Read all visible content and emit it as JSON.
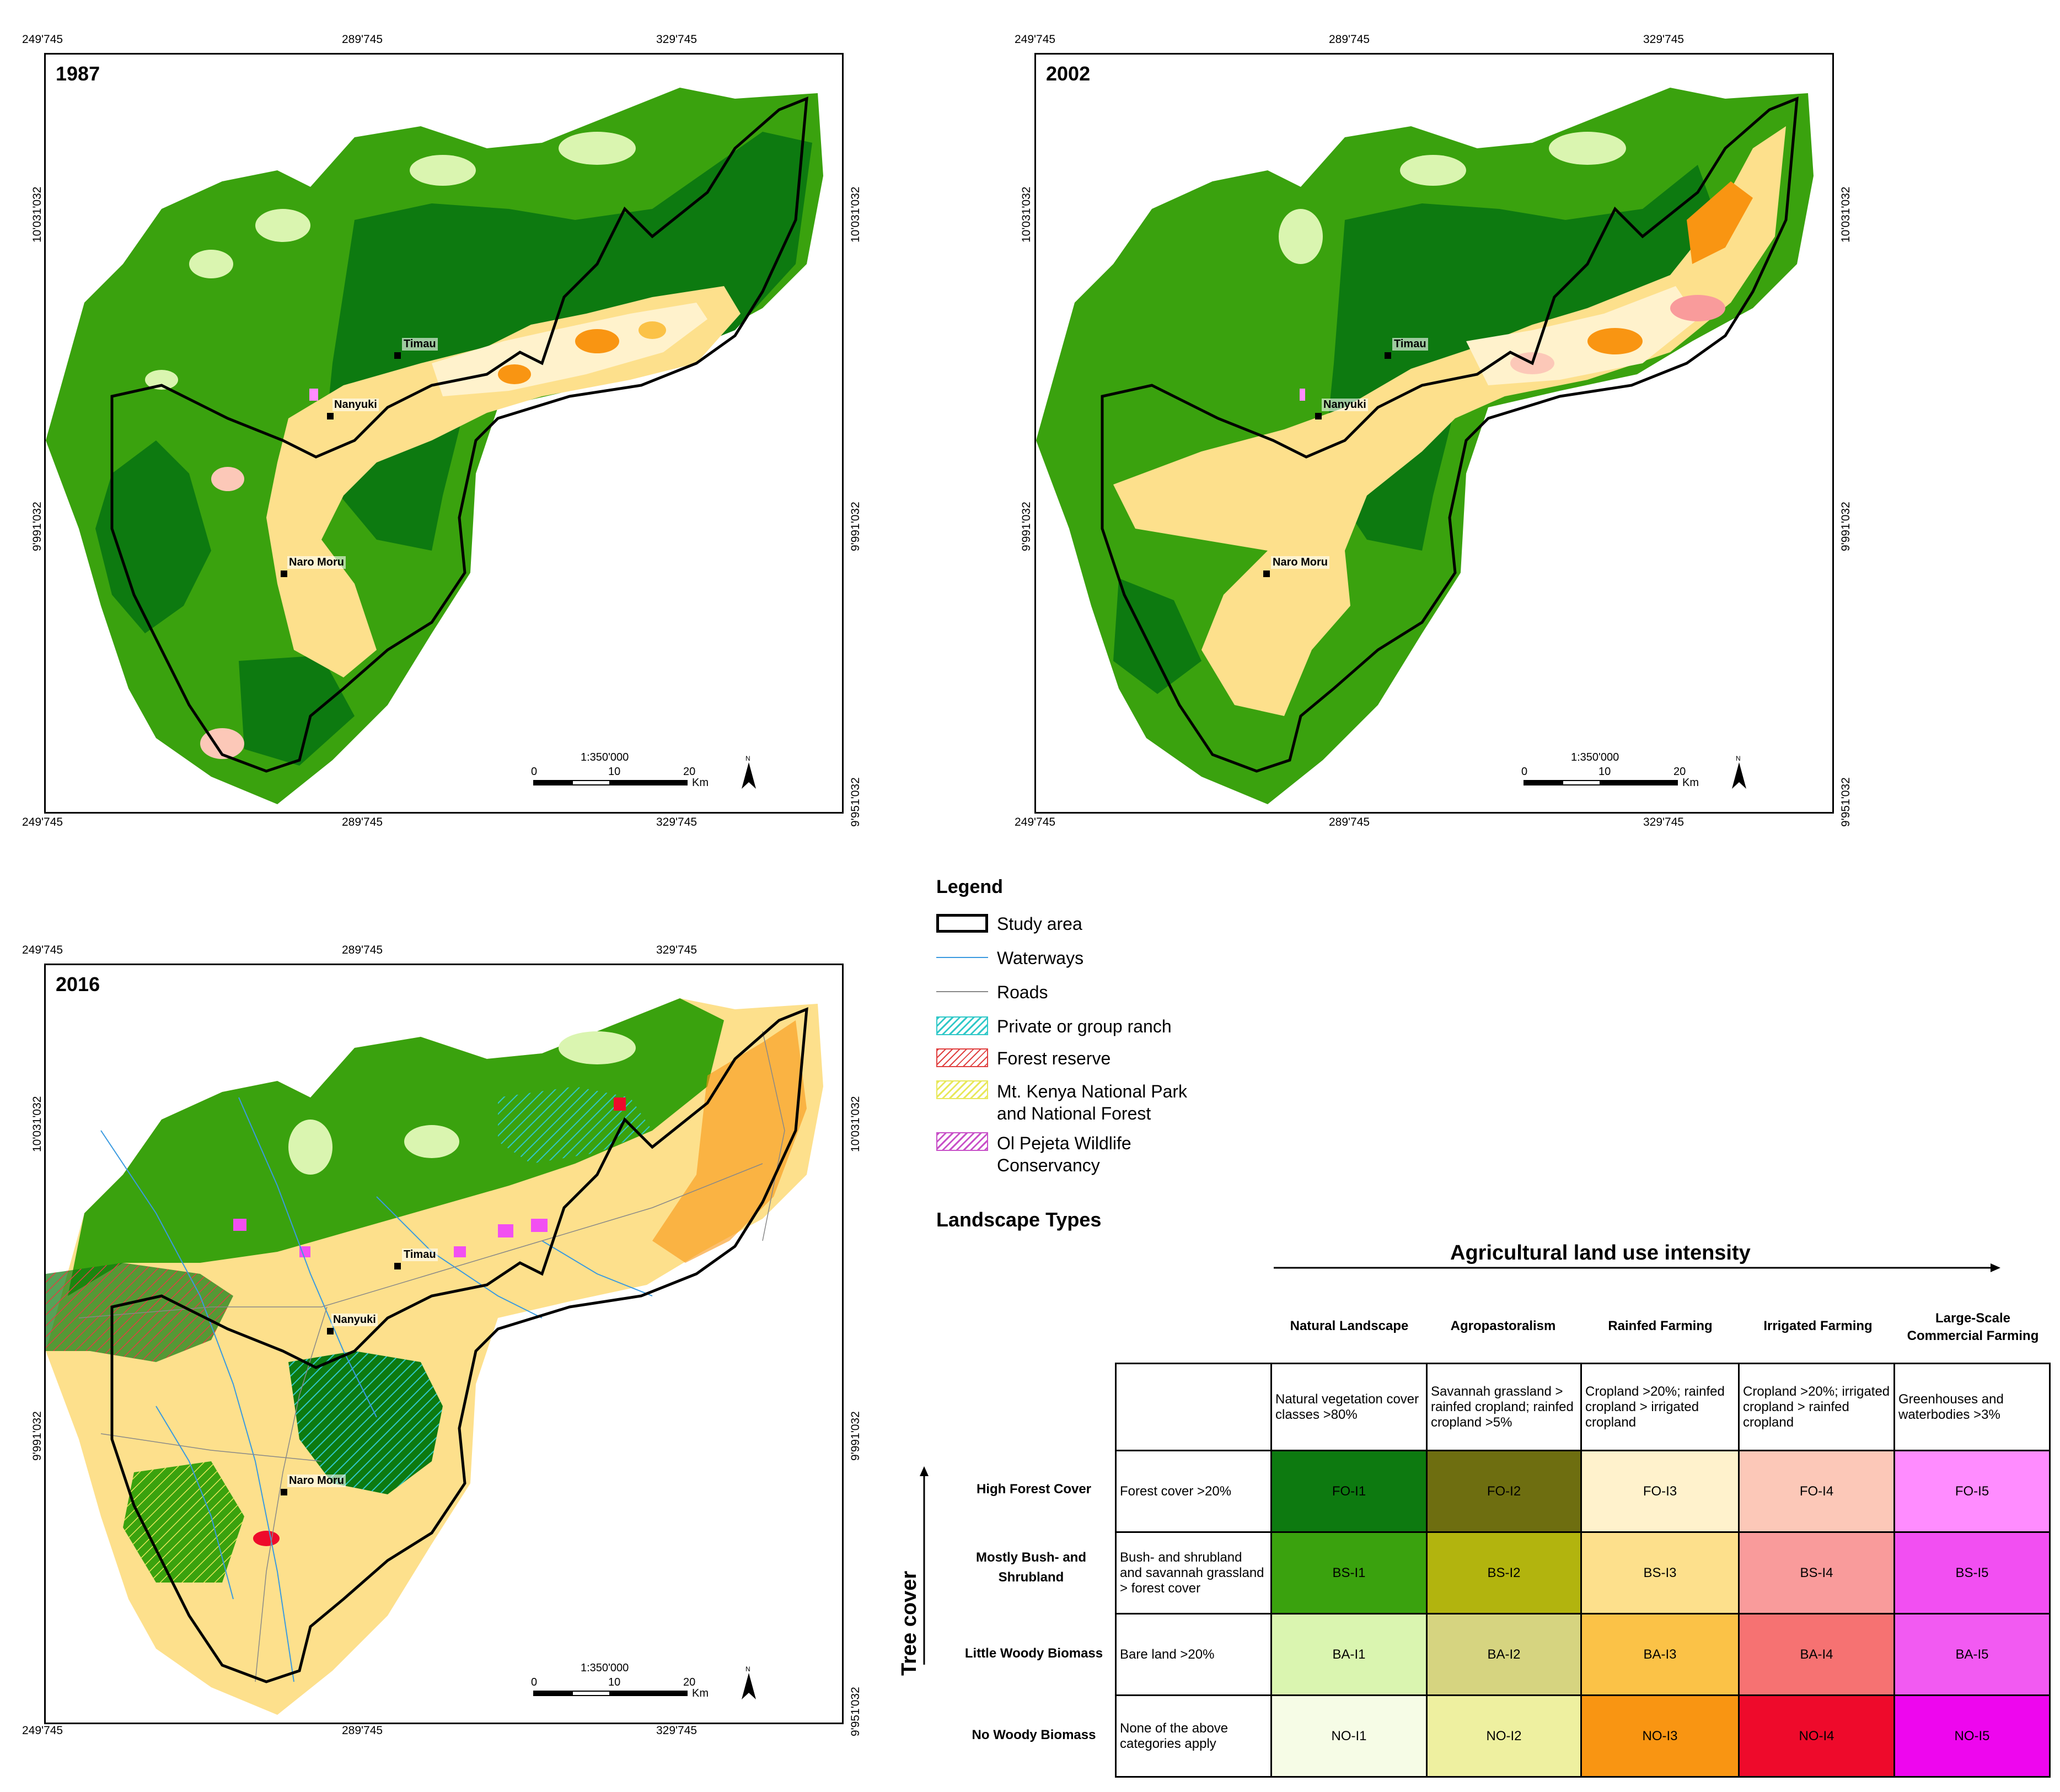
{
  "maps": [
    {
      "year": "1987",
      "top_ticks": [
        "249'745",
        "289'745",
        "329'745"
      ],
      "bottom_ticks": [
        "249'745",
        "289'745",
        "329'745"
      ],
      "left_ticks": [
        "10'031'032",
        "9'991'032"
      ],
      "right_ticks": [
        "10'031'032",
        "9'991'032",
        "9'951'032"
      ],
      "towns": [
        "Timau",
        "Nanyuki",
        "Naro Moru"
      ],
      "scale": {
        "ratio": "1:350'000",
        "ticks": [
          "0",
          "10",
          "20"
        ],
        "unit": "Km",
        "north": "N"
      }
    },
    {
      "year": "2002",
      "top_ticks": [
        "249'745",
        "289'745",
        "329'745"
      ],
      "bottom_ticks": [
        "249'745",
        "289'745",
        "329'745"
      ],
      "left_ticks": [
        "10'031'032",
        "9'991'032"
      ],
      "right_ticks": [
        "10'031'032",
        "9'991'032",
        "9'951'032"
      ],
      "towns": [
        "Timau",
        "Nanyuki",
        "Naro Moru"
      ],
      "scale": {
        "ratio": "1:350'000",
        "ticks": [
          "0",
          "10",
          "20"
        ],
        "unit": "Km",
        "north": "N"
      }
    },
    {
      "year": "2016",
      "top_ticks": [
        "249'745",
        "289'745",
        "329'745"
      ],
      "bottom_ticks": [
        "249'745",
        "289'745",
        "329'745"
      ],
      "left_ticks": [
        "10'031'032",
        "9'991'032"
      ],
      "right_ticks": [
        "10'031'032",
        "9'991'032",
        "9'951'032"
      ],
      "towns": [
        "Timau",
        "Nanyuki",
        "Naro Moru"
      ],
      "scale": {
        "ratio": "1:350'000",
        "ticks": [
          "0",
          "10",
          "20"
        ],
        "unit": "Km",
        "north": "N"
      }
    }
  ],
  "legend": {
    "title": "Legend",
    "items": [
      {
        "label": "Study area",
        "symbol": "box-outline"
      },
      {
        "label": "Waterways",
        "symbol": "blue-line"
      },
      {
        "label": "Roads",
        "symbol": "grey-line"
      },
      {
        "label": "Private or group ranch",
        "symbol": "cyan-hatch"
      },
      {
        "label": "Forest reserve",
        "symbol": "red-hatch"
      },
      {
        "label": "Mt. Kenya National Park and National Forest",
        "symbol": "yellow-hatch"
      },
      {
        "label": "Ol Pejeta Wildlife Conservancy",
        "symbol": "magenta-hatch"
      }
    ]
  },
  "landscape": {
    "title": "Landscape Types",
    "x_axis_label": "Agricultural land use intensity",
    "y_axis_label": "Tree cover",
    "columns": [
      {
        "name": "Natural Landscape",
        "desc": "Natural vegetation cover classes >80%"
      },
      {
        "name": "Agropastoralism",
        "desc": "Savannah grassland > rainfed cropland; rainfed cropland >5%"
      },
      {
        "name": "Rainfed Farming",
        "desc": "Cropland >20%; rainfed cropland > irrigated cropland"
      },
      {
        "name": "Irrigated Farming",
        "desc": "Cropland >20%; irrigated cropland > rainfed cropland"
      },
      {
        "name": "Large-Scale Commercial Farming",
        "desc": "Greenhouses and waterbodies >3%"
      }
    ],
    "rows": [
      {
        "name": "High Forest Cover",
        "desc": "Forest cover >20%",
        "codes": [
          "FO-I1",
          "FO-I2",
          "FO-I3",
          "FO-I4",
          "FO-I5"
        ],
        "colors": [
          "#0d7a10",
          "#6e6e10",
          "#fff2cc",
          "#fcc8b8",
          "#ff8cff"
        ]
      },
      {
        "name": "Mostly Bush- and Shrubland",
        "desc": "Bush- and shrubland and savannah grassland > forest cover",
        "codes": [
          "BS-I1",
          "BS-I2",
          "BS-I3",
          "BS-I4",
          "BS-I5"
        ],
        "colors": [
          "#3aa20e",
          "#b2b40e",
          "#fde08c",
          "#f99b9b",
          "#f24ff2"
        ]
      },
      {
        "name": "Little Woody Biomass",
        "desc": "Bare land >20%",
        "codes": [
          "BA-I1",
          "BA-I2",
          "BA-I3",
          "BA-I4",
          "BA-I5"
        ],
        "colors": [
          "#daf5b0",
          "#d6d480",
          "#fbc247",
          "#f67272",
          "#f25af2"
        ]
      },
      {
        "name": "No Woody Biomass",
        "desc": "None of the above categories apply",
        "codes": [
          "NO-I1",
          "NO-I2",
          "NO-I3",
          "NO-I4",
          "NO-I5"
        ],
        "colors": [
          "#f6fce6",
          "#eef0a0",
          "#f99512",
          "#ee0a2b",
          "#ee06ee"
        ]
      }
    ]
  }
}
